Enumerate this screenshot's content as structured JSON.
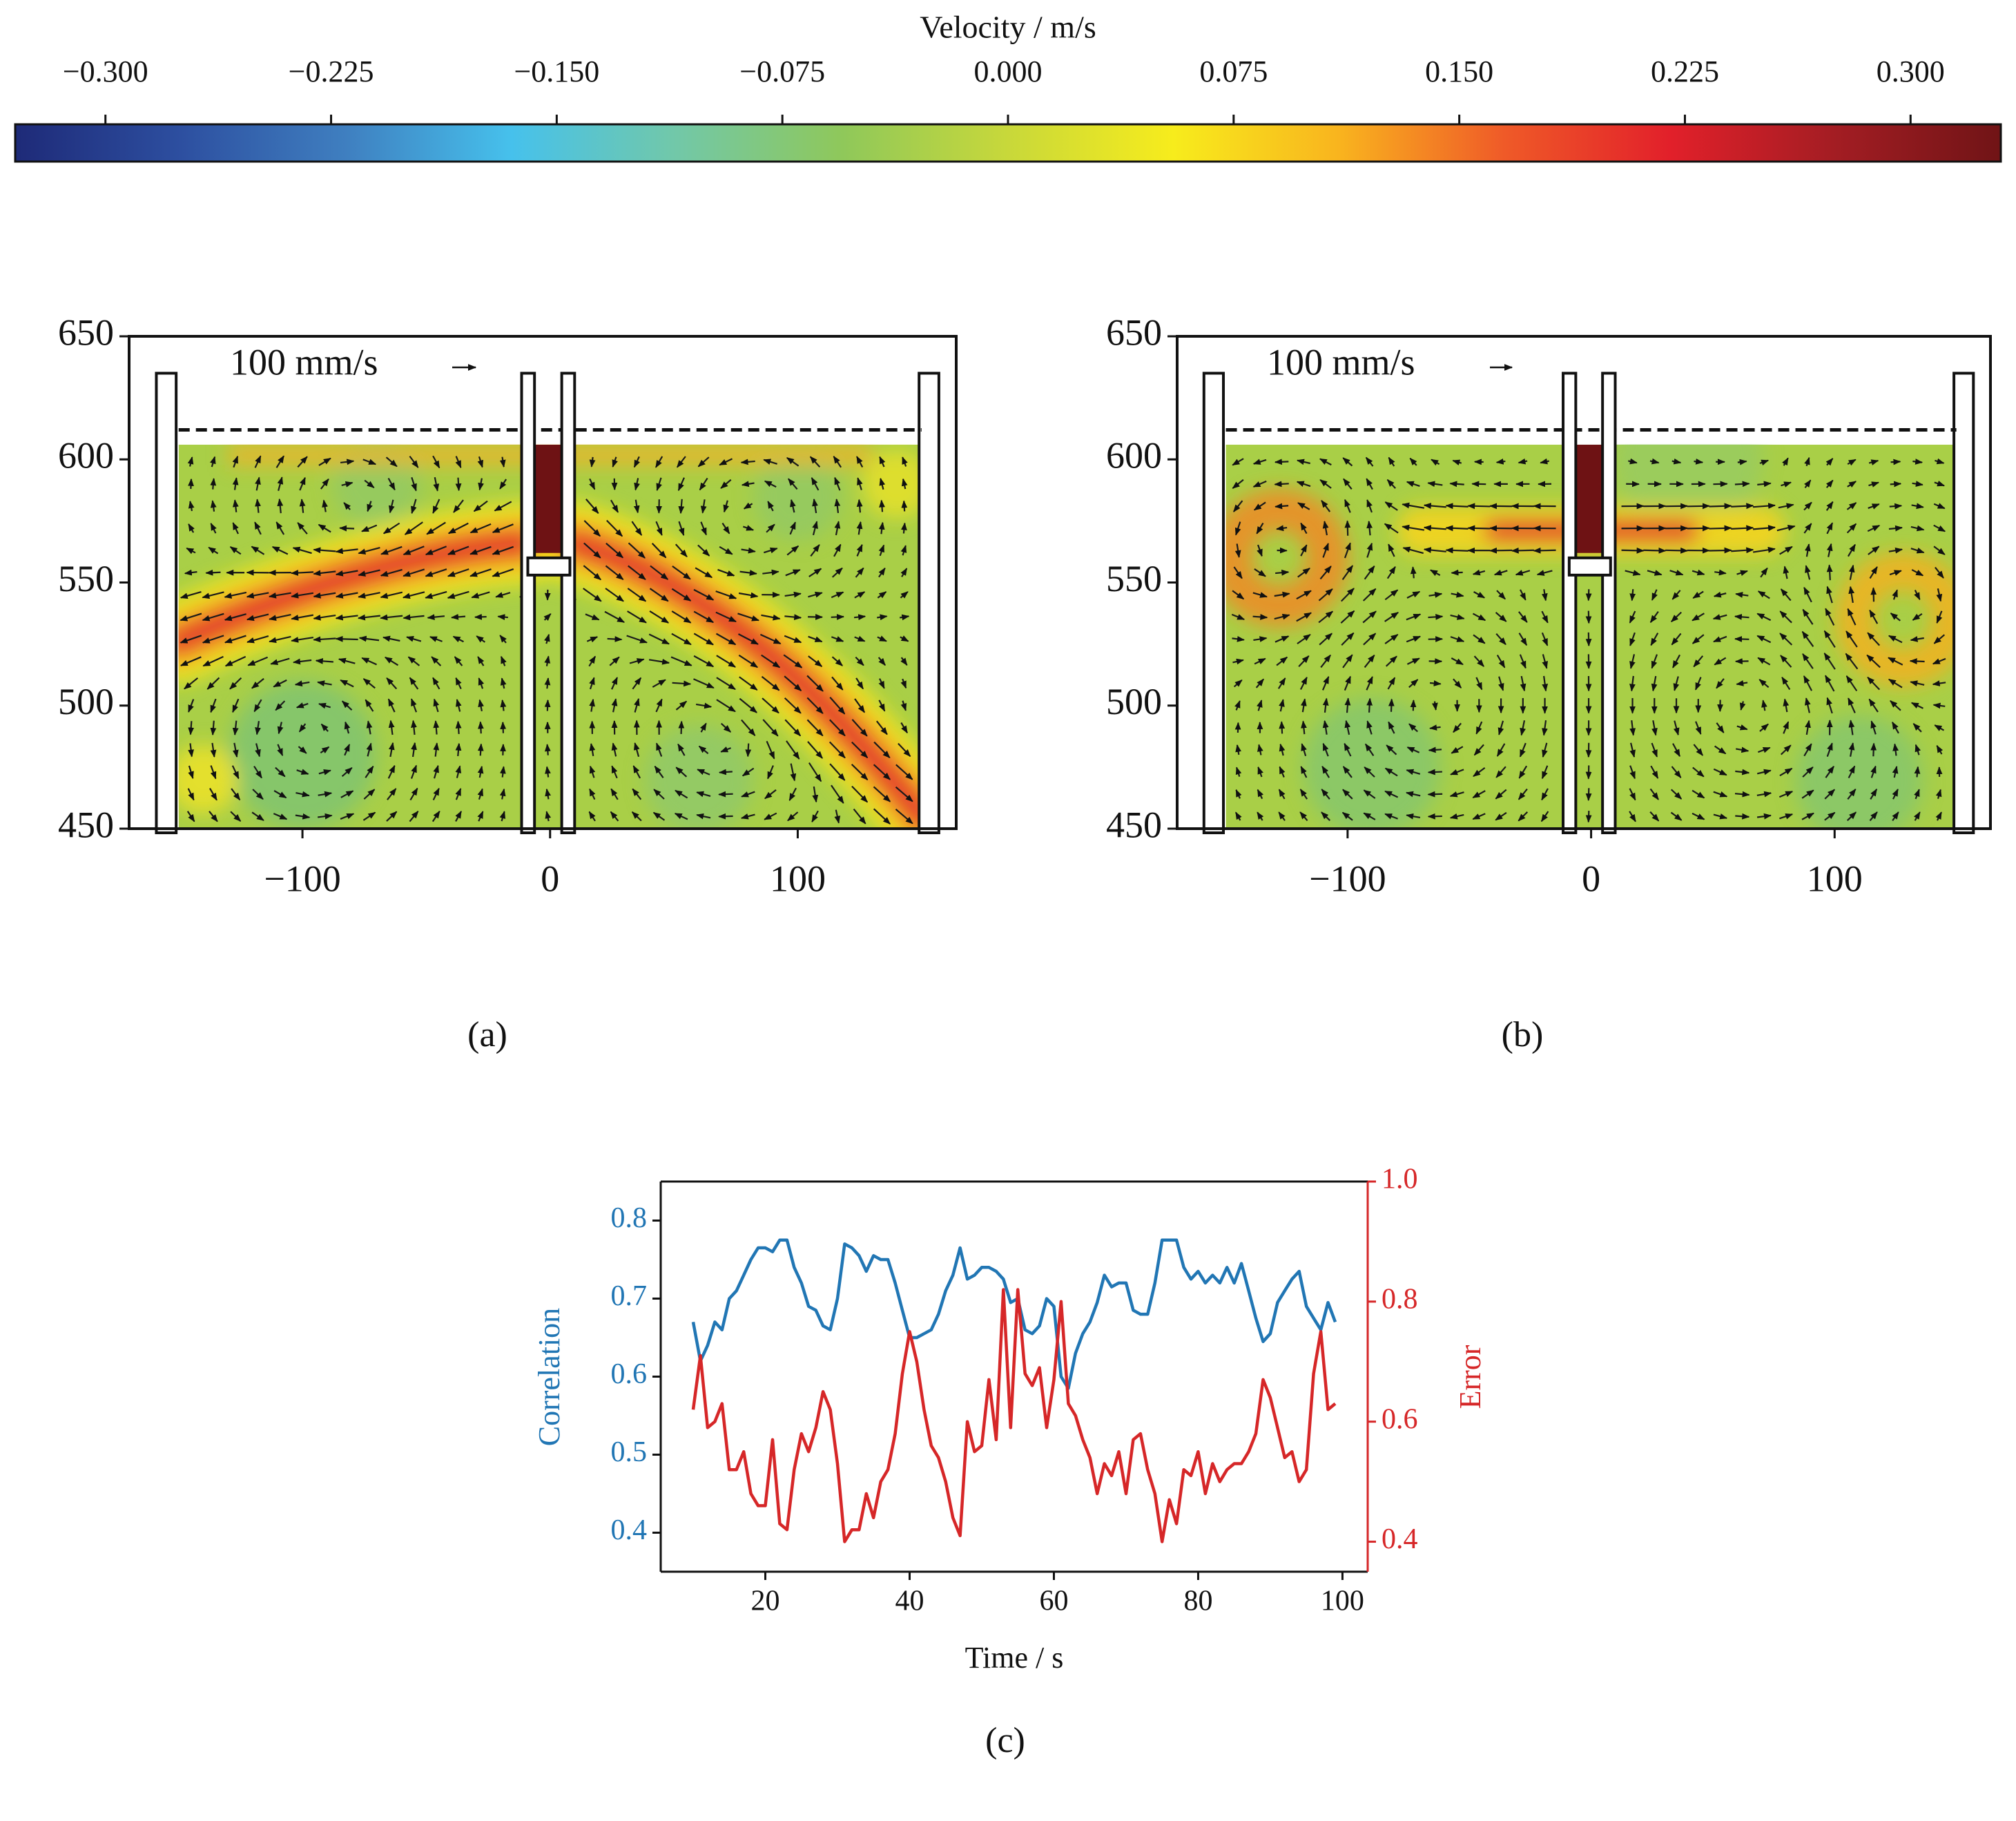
{
  "chart_data": [
    {
      "type": "colorbar",
      "title": "Velocity / m/s",
      "xlim": [
        -0.33,
        0.33
      ],
      "xticks": [
        {
          "value": -0.3,
          "label": "−0.300"
        },
        {
          "value": -0.225,
          "label": "−0.225"
        },
        {
          "value": -0.15,
          "label": "−0.150"
        },
        {
          "value": -0.075,
          "label": "−0.075"
        },
        {
          "value": 0,
          "label": "0.000"
        },
        {
          "value": 0.075,
          "label": "0.075"
        },
        {
          "value": 0.15,
          "label": "0.150"
        },
        {
          "value": 0.225,
          "label": "0.225"
        },
        {
          "value": 0.3,
          "label": "0.300"
        }
      ],
      "colormap": [
        "#1e2a78",
        "#2d4fa0",
        "#3f7fc0",
        "#46c1ec",
        "#72c8a8",
        "#8fc85a",
        "#c8d83a",
        "#f7ec1c",
        "#f9b41e",
        "#ef5a28",
        "#e2202a",
        "#a31d23",
        "#701416"
      ]
    },
    {
      "type": "vector_field",
      "caption": "(a)",
      "annotation": "100 mm/s",
      "xlim": [
        -170,
        164
      ],
      "ylim": [
        450,
        650
      ],
      "xticks": [
        {
          "value": -100,
          "label": "−100"
        },
        0,
        100
      ],
      "yticks": [
        450,
        500,
        550,
        600,
        650
      ]
    },
    {
      "type": "vector_field",
      "caption": "(b)",
      "annotation": "100 mm/s",
      "xlim": [
        -170,
        164
      ],
      "ylim": [
        450,
        650
      ],
      "xticks": [
        {
          "value": -100,
          "label": "−100"
        },
        0,
        100
      ],
      "yticks": [
        450,
        500,
        550,
        600,
        650
      ]
    },
    {
      "type": "line",
      "caption": "(c)",
      "xlabel": "Time / s",
      "ylabel": "Correlation",
      "y2label": "Error",
      "xlim": [
        5.5,
        103.5
      ],
      "ylim": [
        0.35,
        0.85
      ],
      "y2lim": [
        0.35,
        1.0
      ],
      "xticks": [
        20,
        40,
        60,
        80,
        100
      ],
      "yticks": [
        0.4,
        0.5,
        0.6,
        0.7,
        0.8
      ],
      "y2ticks": [
        0.4,
        0.6,
        0.8,
        {
          "value": 1,
          "label": "1.0"
        }
      ],
      "ycolor": "#2176b4",
      "y2color": "#d62728",
      "x": [
        10,
        11,
        12,
        13,
        14,
        15,
        16,
        17,
        18,
        19,
        20,
        21,
        22,
        23,
        24,
        25,
        26,
        27,
        28,
        29,
        30,
        31,
        32,
        33,
        34,
        35,
        36,
        37,
        38,
        39,
        40,
        41,
        42,
        43,
        44,
        45,
        46,
        47,
        48,
        49,
        50,
        51,
        52,
        53,
        54,
        55,
        56,
        57,
        58,
        59,
        60,
        61,
        62,
        63,
        64,
        65,
        66,
        67,
        68,
        69,
        70,
        71,
        72,
        73,
        74,
        75,
        76,
        77,
        78,
        79,
        80,
        81,
        82,
        83,
        84,
        85,
        86,
        87,
        88,
        89,
        90,
        91,
        92,
        93,
        94,
        95,
        96,
        97,
        98,
        99
      ],
      "series": [
        {
          "name": "Correlation",
          "color": "#2176b4",
          "axis": "y",
          "values": [
            0.67,
            0.62,
            0.64,
            0.67,
            0.66,
            0.7,
            0.71,
            0.73,
            0.75,
            0.765,
            0.765,
            0.76,
            0.775,
            0.775,
            0.74,
            0.72,
            0.69,
            0.685,
            0.665,
            0.66,
            0.7,
            0.77,
            0.765,
            0.755,
            0.735,
            0.755,
            0.75,
            0.75,
            0.72,
            0.685,
            0.65,
            0.65,
            0.655,
            0.66,
            0.68,
            0.71,
            0.73,
            0.765,
            0.725,
            0.73,
            0.74,
            0.74,
            0.735,
            0.725,
            0.695,
            0.7,
            0.66,
            0.655,
            0.665,
            0.7,
            0.69,
            0.6,
            0.585,
            0.63,
            0.655,
            0.67,
            0.695,
            0.73,
            0.715,
            0.72,
            0.72,
            0.685,
            0.68,
            0.68,
            0.72,
            0.775,
            0.775,
            0.775,
            0.74,
            0.725,
            0.735,
            0.72,
            0.73,
            0.72,
            0.74,
            0.72,
            0.745,
            0.71,
            0.675,
            0.645,
            0.655,
            0.695,
            0.71,
            0.725,
            0.735,
            0.69,
            0.675,
            0.66,
            0.695,
            0.67
          ]
        },
        {
          "name": "Error",
          "color": "#d62728",
          "axis": "y2",
          "values": [
            0.62,
            0.71,
            0.59,
            0.6,
            0.63,
            0.52,
            0.52,
            0.55,
            0.48,
            0.46,
            0.46,
            0.57,
            0.43,
            0.42,
            0.52,
            0.58,
            0.55,
            0.59,
            0.65,
            0.62,
            0.53,
            0.4,
            0.42,
            0.42,
            0.48,
            0.44,
            0.5,
            0.52,
            0.58,
            0.68,
            0.75,
            0.7,
            0.62,
            0.56,
            0.54,
            0.5,
            0.44,
            0.41,
            0.6,
            0.55,
            0.56,
            0.67,
            0.57,
            0.82,
            0.59,
            0.82,
            0.68,
            0.66,
            0.69,
            0.59,
            0.67,
            0.8,
            0.63,
            0.61,
            0.57,
            0.54,
            0.48,
            0.53,
            0.51,
            0.55,
            0.48,
            0.57,
            0.58,
            0.52,
            0.48,
            0.4,
            0.47,
            0.43,
            0.52,
            0.51,
            0.55,
            0.48,
            0.53,
            0.5,
            0.52,
            0.53,
            0.53,
            0.55,
            0.58,
            0.67,
            0.64,
            0.59,
            0.54,
            0.55,
            0.5,
            0.52,
            0.68,
            0.75,
            0.62,
            0.63
          ]
        }
      ]
    }
  ]
}
